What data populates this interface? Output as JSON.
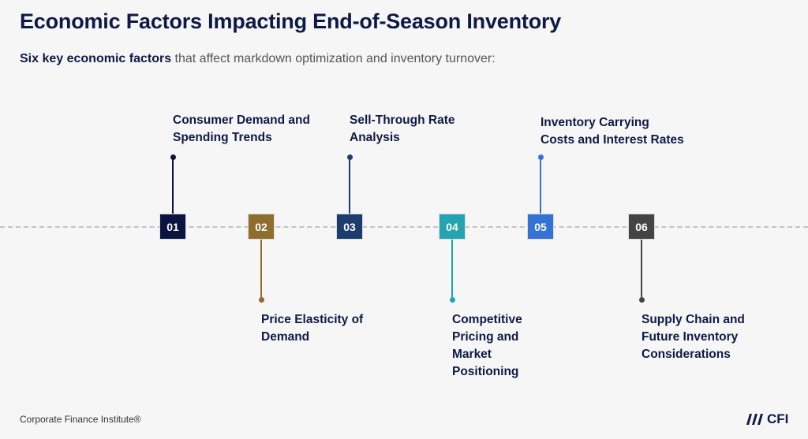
{
  "title": "Economic Factors Impacting End-of-Season Inventory",
  "subtitle_bold": "Six key economic factors",
  "subtitle_rest": " that affect markdown optimization and inventory turnover:",
  "factors": [
    {
      "num": "01",
      "label": "Consumer Demand and\nSpending Trends",
      "color": "#0a1440",
      "position": "top"
    },
    {
      "num": "02",
      "label": "Price Elasticity of\nDemand",
      "color": "#8f6d2f",
      "position": "bottom"
    },
    {
      "num": "03",
      "label": "Sell-Through Rate\nAnalysis",
      "color": "#1c3d6e",
      "position": "top"
    },
    {
      "num": "04",
      "label": "Competitive\nPricing and\nMarket\nPositioning",
      "color": "#24a3b0",
      "position": "bottom"
    },
    {
      "num": "05",
      "label": "Inventory Carrying\nCosts and Interest Rates",
      "color": "#3473d3",
      "position": "top"
    },
    {
      "num": "06",
      "label": "Supply Chain and\nFuture Inventory\nConsiderations",
      "color": "#444444",
      "position": "bottom"
    }
  ],
  "footer": "Corporate Finance Institute®",
  "logo_text": "CFI"
}
